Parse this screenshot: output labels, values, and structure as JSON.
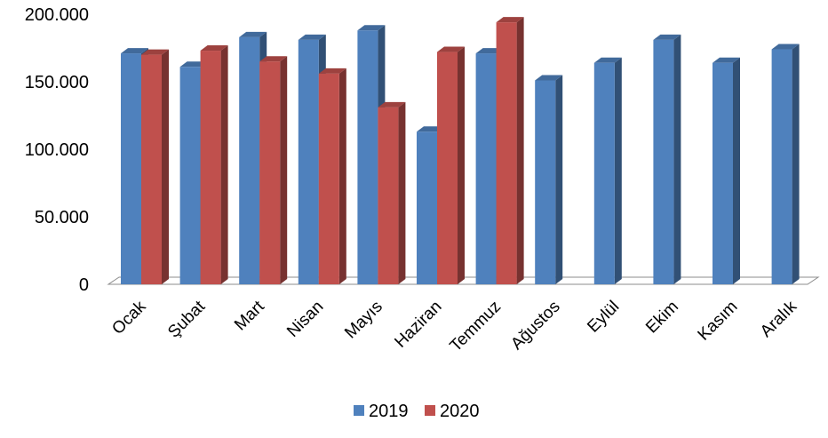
{
  "chart_data": {
    "type": "bar",
    "categories": [
      "Ocak",
      "Şubat",
      "Mart",
      "Nisan",
      "Mayıs",
      "Haziran",
      "Temmuz",
      "Ağustos",
      "Eylül",
      "Ekim",
      "Kasım",
      "Aralık"
    ],
    "series": [
      {
        "name": "2019",
        "color": "#4F81BD",
        "values": [
          171000,
          161000,
          183000,
          181000,
          188000,
          113000,
          171000,
          151000,
          164000,
          181000,
          164000,
          174000
        ]
      },
      {
        "name": "2020",
        "color": "#C0504D",
        "values": [
          170000,
          173000,
          165000,
          156000,
          131000,
          172000,
          194000,
          null,
          null,
          null,
          null,
          null
        ]
      }
    ],
    "ylim": [
      0,
      200000
    ],
    "yticks": [
      0,
      50000,
      100000,
      150000,
      200000
    ],
    "ytick_labels": [
      "0",
      "50.000",
      "100.000",
      "150.000",
      "200.000"
    ],
    "title": "",
    "xlabel": "",
    "ylabel": "",
    "grid": false,
    "legend_position": "bottom",
    "style": "3d-clustered-column"
  }
}
